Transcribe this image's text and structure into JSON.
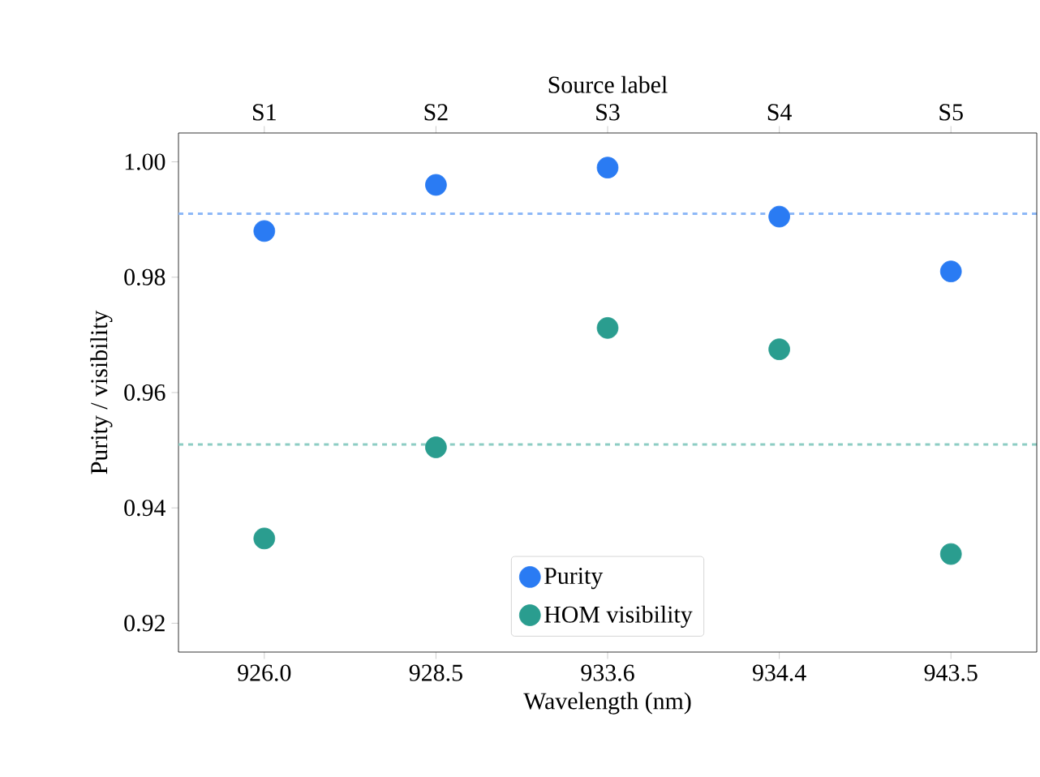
{
  "chart_data": {
    "type": "scatter",
    "xlabel": "Wavelength (nm)",
    "ylabel": "Purity / visibility",
    "x2label": "Source label",
    "categories": [
      "926.0",
      "928.5",
      "933.6",
      "934.4",
      "943.5"
    ],
    "annotations": [
      "S1",
      "S2",
      "S3",
      "S4",
      "S5"
    ],
    "ylim": [
      0.915,
      1.005
    ],
    "yticks": [
      0.92,
      0.94,
      0.96,
      0.98,
      {
        "value": 1.0,
        "label": "1.00"
      }
    ],
    "series": [
      {
        "name": "Purity",
        "color": "#2a7bf3",
        "values": [
          0.988,
          0.996,
          0.999,
          0.9905,
          0.981
        ]
      },
      {
        "name": "HOM visibility",
        "color": "#2a9d8f",
        "values": [
          0.9347,
          0.9505,
          0.9712,
          0.9675,
          0.932
        ]
      }
    ],
    "ref_lines": [
      {
        "axis": "y",
        "value": 0.991,
        "color": "#8db8f7",
        "line_style": "dashed"
      },
      {
        "axis": "y",
        "value": 0.951,
        "color": "#8dcdc4",
        "line_style": "dashed"
      }
    ],
    "marker": "circle",
    "legend": "bottom",
    "grid": false
  }
}
